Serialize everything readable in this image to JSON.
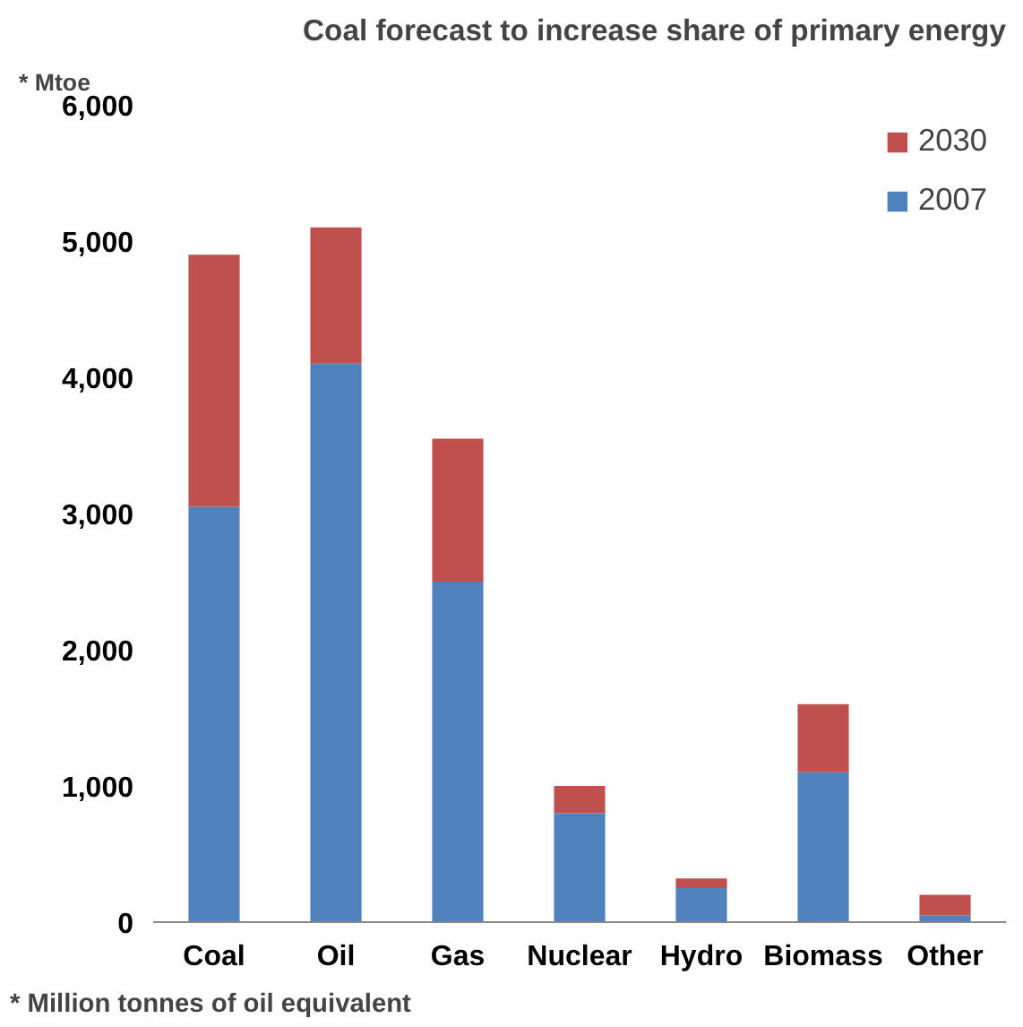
{
  "chart_data": {
    "type": "bar",
    "title": "Coal forecast to increase share of primary energy",
    "ylabel": "* Mtoe",
    "categories": [
      "Coal",
      "Oil",
      "Gas",
      "Nuclear",
      "Hydro",
      "Biomass",
      "Other"
    ],
    "stacked": true,
    "series": [
      {
        "name": "2007",
        "color": "#4f81bd",
        "values": [
          3050,
          4100,
          2500,
          800,
          250,
          1100,
          50
        ]
      },
      {
        "name": "2030",
        "color": "#c0504d",
        "values": [
          1850,
          1000,
          1050,
          200,
          70,
          500,
          150
        ]
      }
    ],
    "ylim": [
      0,
      6000
    ],
    "yticks": [
      {
        "value": 0,
        "label": "0"
      },
      {
        "value": 1000,
        "label": "1,000"
      },
      {
        "value": 2000,
        "label": "2,000"
      },
      {
        "value": 3000,
        "label": "3,000"
      },
      {
        "value": 4000,
        "label": "4,000"
      },
      {
        "value": 5000,
        "label": "5,000"
      },
      {
        "value": 6000,
        "label": "6,000"
      }
    ],
    "grid": false,
    "legend": "top right",
    "annotations": [
      "* Million tonnes of oil equivalent"
    ]
  }
}
